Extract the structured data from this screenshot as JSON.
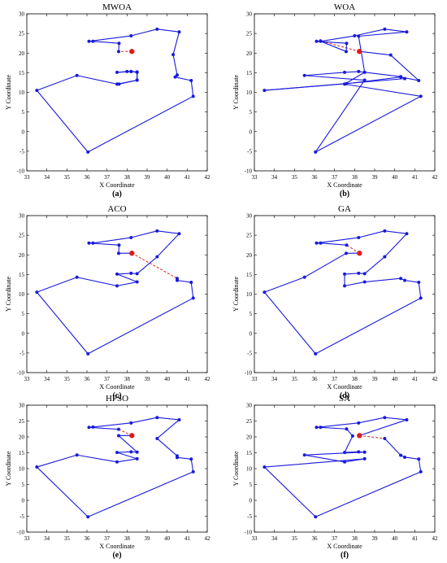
{
  "colors": {
    "route": "#1a1adb",
    "start": "#e01b1b",
    "axis": "#000000"
  },
  "chart_data": [
    {
      "type": "line",
      "title": "MWOA",
      "caption": "(a)",
      "xlabel": "X Coordinate",
      "ylabel": "Y Coordinate",
      "xlim": [
        33,
        42
      ],
      "ylim": [
        -10,
        30
      ],
      "xticks": [
        "33",
        "34",
        "35",
        "36",
        "37",
        "38",
        "39",
        "40",
        "41",
        "42"
      ],
      "yticks": [
        "-10",
        "-5",
        "0",
        "5",
        "10",
        "15",
        "20",
        "25",
        "30"
      ],
      "start": [
        38.24,
        20.42
      ],
      "route": [
        [
          38.24,
          20.42
        ],
        [
          37.58,
          20.4
        ],
        [
          37.6,
          22.5
        ],
        [
          36.3,
          23.0
        ],
        [
          36.1,
          23.0
        ],
        [
          38.2,
          24.4
        ],
        [
          39.5,
          26.1
        ],
        [
          40.6,
          25.4
        ],
        [
          40.3,
          19.6
        ],
        [
          40.5,
          14.4
        ],
        [
          40.4,
          13.9
        ],
        [
          41.2,
          13.0
        ],
        [
          41.3,
          9.0
        ],
        [
          36.05,
          -5.2
        ],
        [
          33.5,
          10.5
        ],
        [
          35.5,
          14.3
        ],
        [
          37.5,
          12.1
        ],
        [
          38.5,
          13.1
        ],
        [
          38.5,
          15.1
        ],
        [
          38.2,
          15.3
        ],
        [
          37.5,
          15.1
        ],
        [
          38.0,
          15.3
        ],
        [
          38.2,
          15.3
        ],
        [
          38.5,
          15.2
        ],
        [
          38.5,
          13.1
        ],
        [
          37.6,
          12.1
        ]
      ]
    },
    {
      "type": "line",
      "title": "WOA",
      "caption": "(b)",
      "xlabel": "X Coordinate",
      "ylabel": "Y Coordinate",
      "xlim": [
        33,
        42
      ],
      "ylim": [
        -10,
        30
      ],
      "xticks": [
        "33",
        "34",
        "35",
        "36",
        "37",
        "38",
        "39",
        "40",
        "41",
        "42"
      ],
      "yticks": [
        "-10",
        "-5",
        "0",
        "5",
        "10",
        "15",
        "20",
        "25",
        "30"
      ],
      "start": [
        38.24,
        20.42
      ],
      "route": [
        [
          38.24,
          20.42
        ],
        [
          36.3,
          23.1
        ],
        [
          36.1,
          23.0
        ],
        [
          37.6,
          22.5
        ],
        [
          37.58,
          20.4
        ],
        [
          36.3,
          23.0
        ],
        [
          38.0,
          24.4
        ],
        [
          39.5,
          26.1
        ],
        [
          40.6,
          25.4
        ],
        [
          38.2,
          24.3
        ],
        [
          38.5,
          15.1
        ],
        [
          37.5,
          12.1
        ],
        [
          41.3,
          9.0
        ],
        [
          36.05,
          -5.2
        ],
        [
          38.5,
          13.1
        ],
        [
          35.5,
          14.3
        ],
        [
          37.5,
          15.1
        ],
        [
          38.2,
          15.3
        ],
        [
          40.3,
          14.0
        ],
        [
          40.5,
          13.5
        ],
        [
          33.5,
          10.5
        ],
        [
          37.6,
          12.2
        ],
        [
          40.3,
          13.9
        ],
        [
          41.2,
          13.0
        ],
        [
          39.8,
          19.5
        ],
        [
          38.24,
          20.42
        ]
      ]
    },
    {
      "type": "line",
      "title": "ACO",
      "caption": "(c)",
      "xlabel": "X Coordinate",
      "ylabel": "Y Coordinate",
      "xlim": [
        33,
        42
      ],
      "ylim": [
        -10,
        30
      ],
      "xticks": [
        "33",
        "34",
        "35",
        "36",
        "37",
        "38",
        "39",
        "40",
        "41",
        "42"
      ],
      "yticks": [
        "-10",
        "-5",
        "0",
        "5",
        "10",
        "15",
        "20",
        "25",
        "30"
      ],
      "start": [
        38.24,
        20.42
      ],
      "route": [
        [
          38.24,
          20.42
        ],
        [
          40.5,
          14.0
        ],
        [
          40.5,
          13.5
        ],
        [
          41.2,
          13.0
        ],
        [
          41.3,
          9.0
        ],
        [
          36.05,
          -5.2
        ],
        [
          33.5,
          10.5
        ],
        [
          35.5,
          14.3
        ],
        [
          37.5,
          12.1
        ],
        [
          38.5,
          13.1
        ],
        [
          37.5,
          15.1
        ],
        [
          38.2,
          15.3
        ],
        [
          38.5,
          15.2
        ],
        [
          39.5,
          19.5
        ],
        [
          40.6,
          25.4
        ],
        [
          39.5,
          26.1
        ],
        [
          38.2,
          24.4
        ],
        [
          36.3,
          23.0
        ],
        [
          36.1,
          23.0
        ],
        [
          37.6,
          22.5
        ],
        [
          37.58,
          20.4
        ],
        [
          38.24,
          20.42
        ]
      ]
    },
    {
      "type": "line",
      "title": "GA",
      "caption": "(d)",
      "xlabel": "X Coordinate",
      "ylabel": "Y Coordinate",
      "xlim": [
        33,
        42
      ],
      "ylim": [
        -10,
        30
      ],
      "xticks": [
        "33",
        "34",
        "35",
        "36",
        "37",
        "38",
        "39",
        "40",
        "41",
        "42"
      ],
      "yticks": [
        "-10",
        "-5",
        "0",
        "5",
        "10",
        "15",
        "20",
        "25",
        "30"
      ],
      "start": [
        38.24,
        20.42
      ],
      "route": [
        [
          38.24,
          20.42
        ],
        [
          37.6,
          22.5
        ],
        [
          36.3,
          23.0
        ],
        [
          36.1,
          23.0
        ],
        [
          38.2,
          24.4
        ],
        [
          39.5,
          26.1
        ],
        [
          40.6,
          25.4
        ],
        [
          39.5,
          19.5
        ],
        [
          38.5,
          15.2
        ],
        [
          38.2,
          15.3
        ],
        [
          37.5,
          15.1
        ],
        [
          37.5,
          12.1
        ],
        [
          38.5,
          13.1
        ],
        [
          40.3,
          14.0
        ],
        [
          40.5,
          13.5
        ],
        [
          41.2,
          13.0
        ],
        [
          41.3,
          9.0
        ],
        [
          36.05,
          -5.2
        ],
        [
          33.5,
          10.5
        ],
        [
          35.5,
          14.3
        ],
        [
          37.58,
          20.4
        ],
        [
          38.24,
          20.42
        ]
      ]
    },
    {
      "type": "line",
      "title": "HPSO",
      "caption": "(e)",
      "xlabel": "X Coordinate",
      "ylabel": "Y Coordinate",
      "xlim": [
        33,
        42
      ],
      "ylim": [
        -10,
        30
      ],
      "xticks": [
        "33",
        "34",
        "35",
        "36",
        "37",
        "38",
        "39",
        "40",
        "41",
        "42"
      ],
      "yticks": [
        "-10",
        "-5",
        "0",
        "5",
        "10",
        "15",
        "20",
        "25",
        "30"
      ],
      "start": [
        38.24,
        20.42
      ],
      "route": [
        [
          38.24,
          20.42
        ],
        [
          37.58,
          22.4
        ],
        [
          36.1,
          23.0
        ],
        [
          36.3,
          23.1
        ],
        [
          38.2,
          24.4
        ],
        [
          39.5,
          26.1
        ],
        [
          40.6,
          25.4
        ],
        [
          39.5,
          19.5
        ],
        [
          40.5,
          14.0
        ],
        [
          40.5,
          13.5
        ],
        [
          41.2,
          13.0
        ],
        [
          41.3,
          9.0
        ],
        [
          36.05,
          -5.2
        ],
        [
          33.5,
          10.5
        ],
        [
          35.5,
          14.3
        ],
        [
          37.5,
          12.1
        ],
        [
          38.5,
          13.1
        ],
        [
          37.5,
          15.1
        ],
        [
          38.2,
          15.3
        ],
        [
          38.5,
          15.2
        ],
        [
          37.58,
          20.4
        ],
        [
          38.24,
          20.42
        ]
      ]
    },
    {
      "type": "line",
      "title": "SA",
      "caption": "(f)",
      "xlabel": "X Coordinate",
      "ylabel": "Y Coordinate",
      "xlim": [
        33,
        42
      ],
      "ylim": [
        -10,
        30
      ],
      "xticks": [
        "33",
        "34",
        "35",
        "36",
        "37",
        "38",
        "39",
        "40",
        "41",
        "42"
      ],
      "yticks": [
        "-10",
        "-5",
        "0",
        "5",
        "10",
        "15",
        "20",
        "25",
        "30"
      ],
      "start": [
        38.24,
        20.42
      ],
      "route": [
        [
          38.24,
          20.42
        ],
        [
          39.5,
          19.5
        ],
        [
          40.3,
          14.2
        ],
        [
          40.5,
          13.6
        ],
        [
          41.2,
          13.0
        ],
        [
          41.3,
          9.0
        ],
        [
          36.05,
          -5.2
        ],
        [
          33.5,
          10.5
        ],
        [
          38.5,
          13.1
        ],
        [
          37.5,
          12.1
        ],
        [
          35.5,
          14.3
        ],
        [
          38.5,
          15.2
        ],
        [
          38.2,
          15.3
        ],
        [
          37.5,
          15.1
        ],
        [
          37.9,
          20.3
        ],
        [
          37.6,
          22.5
        ],
        [
          36.3,
          23.0
        ],
        [
          36.1,
          23.0
        ],
        [
          38.2,
          24.4
        ],
        [
          39.5,
          26.1
        ],
        [
          40.6,
          25.4
        ],
        [
          38.24,
          20.42
        ]
      ]
    }
  ]
}
